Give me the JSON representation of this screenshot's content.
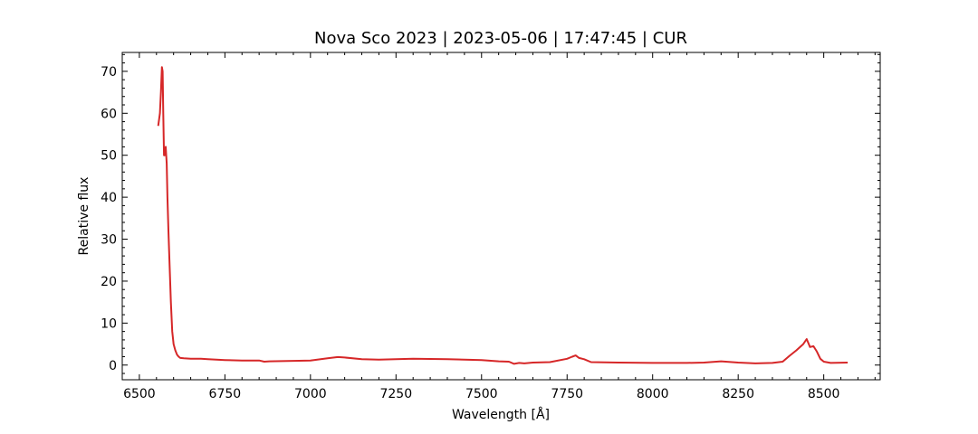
{
  "chart_data": {
    "type": "line",
    "title": "Nova Sco 2023 | 2023-05-06 | 17:47:45 | CUR",
    "xlabel": "Wavelength [Å]",
    "ylabel": "Relative flux",
    "xlim": [
      6450,
      8665
    ],
    "ylim": [
      -3.5,
      74.5
    ],
    "xticks": [
      6500,
      6750,
      7000,
      7250,
      7500,
      7750,
      8000,
      8250,
      8500
    ],
    "yticks": [
      0,
      10,
      20,
      30,
      40,
      50,
      60,
      70
    ],
    "grid": false,
    "line_color": "#d62728",
    "series": [
      {
        "x": [
          6555,
          6560,
          6563,
          6566,
          6568,
          6570,
          6572,
          6574,
          6577,
          6580,
          6582,
          6585,
          6588,
          6592,
          6596,
          6600,
          6605,
          6610,
          6615,
          6620,
          6630,
          6650,
          6680,
          6700,
          6750,
          6800,
          6850,
          6865,
          6880,
          6950,
          7000,
          7050,
          7080,
          7100,
          7150,
          7200,
          7250,
          7300,
          7400,
          7450,
          7500,
          7550,
          7580,
          7595,
          7610,
          7625,
          7650,
          7700,
          7750,
          7765,
          7775,
          7785,
          7800,
          7820,
          7900,
          8000,
          8100,
          8150,
          8200,
          8250,
          8300,
          8350,
          8380,
          8400,
          8420,
          8440,
          8450,
          8460,
          8470,
          8480,
          8490,
          8500,
          8520,
          8570
        ],
        "y": [
          57,
          60,
          65,
          71,
          70,
          60,
          50,
          50,
          52,
          48,
          40,
          32,
          25,
          15,
          8,
          5,
          3.5,
          2.5,
          2,
          1.7,
          1.6,
          1.5,
          1.5,
          1.4,
          1.2,
          1.1,
          1.1,
          0.8,
          0.9,
          1.0,
          1.1,
          1.6,
          1.9,
          1.8,
          1.4,
          1.3,
          1.4,
          1.5,
          1.4,
          1.3,
          1.2,
          0.9,
          0.8,
          0.3,
          0.5,
          0.4,
          0.6,
          0.7,
          1.5,
          2.0,
          2.3,
          1.7,
          1.4,
          0.7,
          0.6,
          0.5,
          0.5,
          0.6,
          0.9,
          0.6,
          0.4,
          0.5,
          0.8,
          2.2,
          3.5,
          5.0,
          6.2,
          4.3,
          4.5,
          3.2,
          1.5,
          0.8,
          0.5,
          0.6
        ]
      }
    ]
  }
}
